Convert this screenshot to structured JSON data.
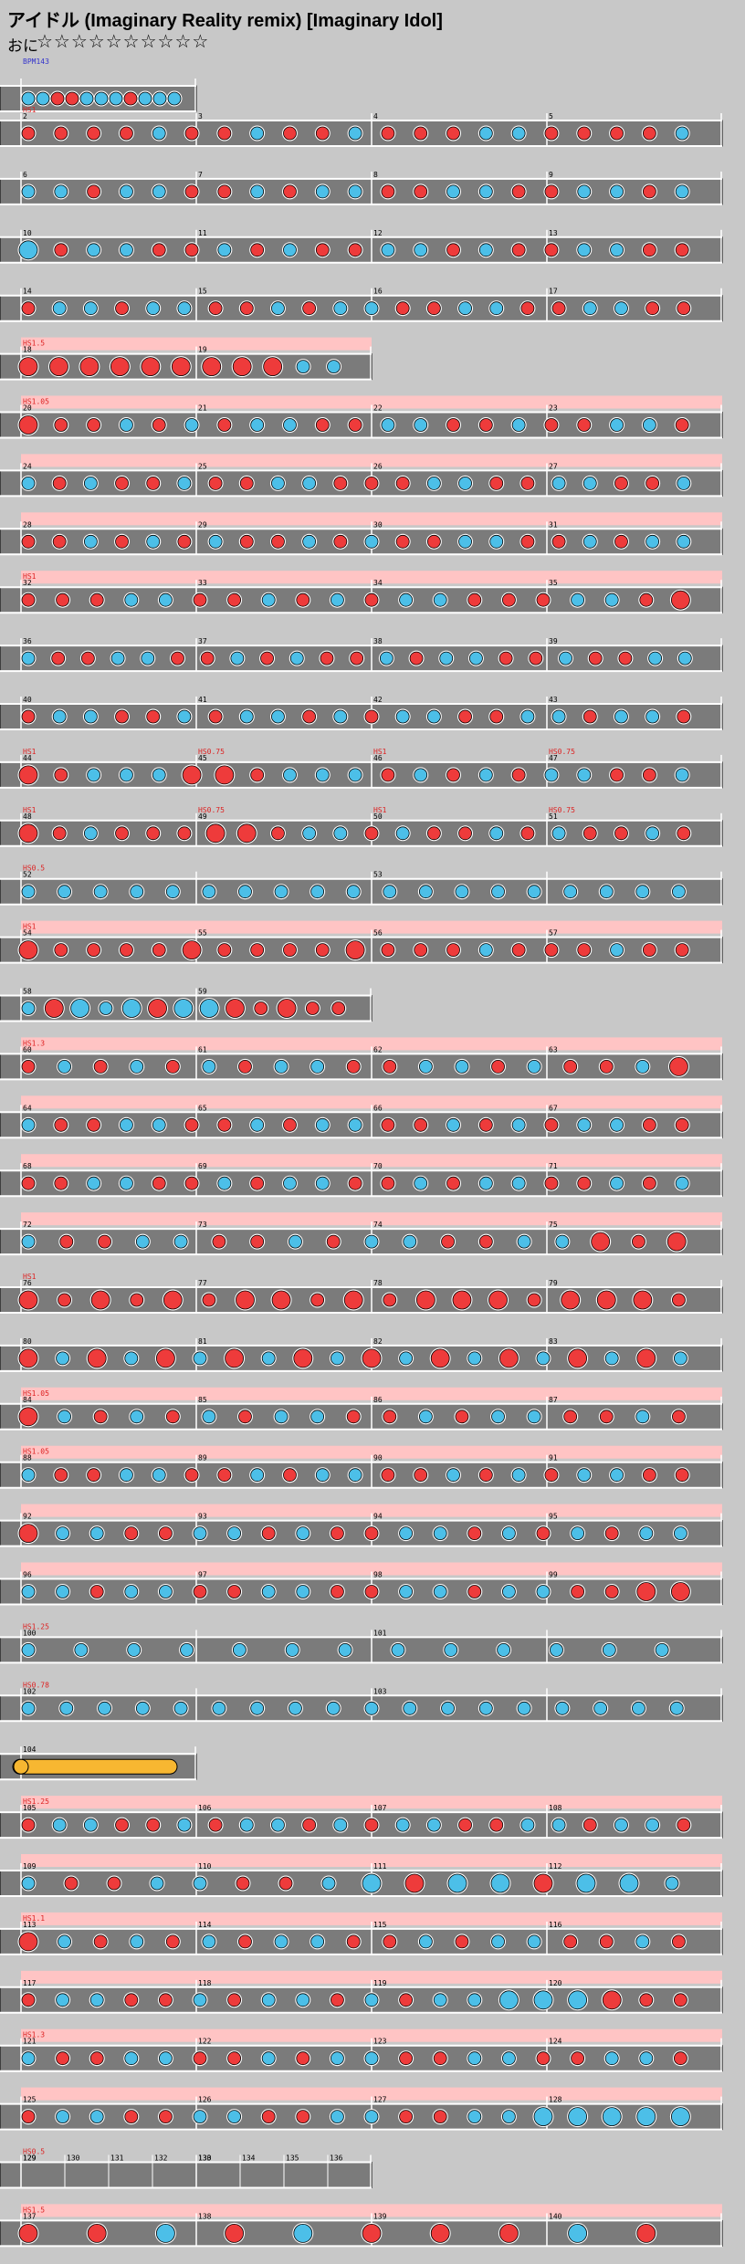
{
  "song": {
    "title": "アイドル (Imaginary Reality remix) [Imaginary Idol]",
    "difficulty_label": "おに",
    "stars": "☆☆☆☆☆☆☆☆☆☆"
  },
  "colors": {
    "background": "#c8c8c8",
    "lane": "#7b7b7b",
    "lane_border": "#ffffff",
    "don": "#ee3b3b",
    "katsu": "#4cbfe8",
    "scroll_band": "#ffc4c4",
    "scroll_text": "#dd2222",
    "roll": "#f7b731",
    "bpm_text": "#3333cc"
  },
  "bpm_label": "BPM143",
  "rows": [
    {
      "segments": 1,
      "bars": [
        "",
        ""
      ],
      "pattern": "kkrrkkkrkkk",
      "scroll": []
    },
    {
      "segments": 4,
      "bars": [
        "2",
        "3",
        "4",
        "5"
      ],
      "pattern": "drrdkrdkdrkdrrkkdrdrk",
      "scroll": [
        {
          "seg": 0,
          "text": "HS1",
          "full": false
        }
      ]
    },
    {
      "segments": 4,
      "bars": [
        "6",
        "7",
        "8",
        "9"
      ],
      "pattern": "kkrkkdrkrkkdrkkrdkkrk",
      "scroll": []
    },
    {
      "segments": 4,
      "bars": [
        "10",
        "11",
        "12",
        "13"
      ],
      "pattern": "Krkkdrkrkrdkkrkdrkkrd",
      "scroll": []
    },
    {
      "segments": 4,
      "bars": [
        "14",
        "15",
        "16",
        "17"
      ],
      "pattern": "dkkrkkdrkrkkddkkrrkkrd",
      "scroll": []
    },
    {
      "segments": 2,
      "bars": [
        "18",
        "19"
      ],
      "pattern": "DDDDDDDDDkk",
      "scroll": [
        {
          "seg": 0,
          "text": "HS1.5",
          "full": true
        }
      ]
    },
    {
      "segments": 4,
      "bars": [
        "20",
        "21",
        "22",
        "23"
      ],
      "pattern": "Drrkdkrkkrdkkdrkrrkkr",
      "scroll": [
        {
          "seg": 0,
          "text": "HS1.05",
          "full": true
        }
      ]
    },
    {
      "segments": 4,
      "bars": [
        "24",
        "25",
        "26",
        "27"
      ],
      "pattern": "krkrdkdrkkrdrkkrdkkdrk",
      "scroll": [
        {
          "seg": 0,
          "text": "",
          "full": true
        }
      ]
    },
    {
      "segments": 4,
      "bars": [
        "28",
        "29",
        "30",
        "31"
      ],
      "pattern": "rdkrkrkdrkrkdrkkrdkrkk",
      "scroll": [
        {
          "seg": 0,
          "text": "",
          "full": true
        }
      ]
    },
    {
      "segments": 4,
      "bars": [
        "32",
        "33",
        "34",
        "35"
      ],
      "pattern": "drrkkdrkdkrkkrrdkkdD",
      "scroll": [
        {
          "seg": 0,
          "text": "HS1",
          "full": true
        }
      ]
    },
    {
      "segments": 4,
      "bars": [
        "36",
        "37",
        "38",
        "39"
      ],
      "pattern": "kdrkkrdkrkdrkrkkdrkdrkk",
      "scroll": []
    },
    {
      "segments": 4,
      "bars": [
        "40",
        "41",
        "42",
        "43"
      ],
      "pattern": "rkkdrkrkkdkrkkrdkkrkkr",
      "scroll": []
    },
    {
      "segments": 4,
      "bars": [
        "44",
        "45",
        "46",
        "47"
      ],
      "pattern": "DrkkkDDrkkkdkrkrkkdrk",
      "scroll": [
        {
          "seg": 0,
          "text": "HS1",
          "full": false
        },
        {
          "seg": 1,
          "text": "HS0.75",
          "full": false
        },
        {
          "seg": 2,
          "text": "HS1",
          "full": false
        },
        {
          "seg": 3,
          "text": "HS0.75",
          "full": false
        }
      ]
    },
    {
      "segments": 4,
      "bars": [
        "48",
        "49",
        "50",
        "51"
      ],
      "pattern": "DrkrrrDDrkkrkdrkrkdrkr",
      "scroll": [
        {
          "seg": 0,
          "text": "HS1",
          "full": false
        },
        {
          "seg": 1,
          "text": "HS0.75",
          "full": false
        },
        {
          "seg": 2,
          "text": "HS1",
          "full": false
        },
        {
          "seg": 3,
          "text": "HS0.75",
          "full": false
        }
      ]
    },
    {
      "segments": 4,
      "bars": [
        "52",
        "",
        "53",
        ""
      ],
      "pattern": "kkkkkkkkkkkkkkkkkkk",
      "scroll": [
        {
          "seg": 0,
          "text": "HS0.5",
          "full": false
        }
      ]
    },
    {
      "segments": 4,
      "bars": [
        "54",
        "55",
        "56",
        "57"
      ],
      "pattern": "DrrdrDrrdrDrrdkrrdkrr",
      "scroll": [
        {
          "seg": 0,
          "text": "HS1",
          "full": true
        }
      ]
    },
    {
      "segments": 2,
      "bars": [
        "58",
        "59"
      ],
      "pattern": "kDKkKDKKDrDrr",
      "scroll": []
    },
    {
      "segments": 4,
      "bars": [
        "60",
        "61",
        "62",
        "63"
      ],
      "pattern": "dkrkdkrkkdrkkrkdrkD",
      "scroll": [
        {
          "seg": 0,
          "text": "HS1.3",
          "full": true
        }
      ]
    },
    {
      "segments": 4,
      "bars": [
        "64",
        "65",
        "66",
        "67"
      ],
      "pattern": "krdkkrdkrkkdrkrkdkkrd",
      "scroll": [
        {
          "seg": 0,
          "text": "",
          "full": true
        }
      ]
    },
    {
      "segments": 4,
      "bars": [
        "68",
        "69",
        "70",
        "71"
      ],
      "pattern": "drkkrdkrkkdrkrkkdrkrk",
      "scroll": [
        {
          "seg": 0,
          "text": "",
          "full": true
        }
      ]
    },
    {
      "segments": 4,
      "bars": [
        "72",
        "73",
        "74",
        "75"
      ],
      "pattern": "kdrkkrdkrkkdrkkDrD",
      "scroll": [
        {
          "seg": 0,
          "text": "",
          "full": true
        }
      ]
    },
    {
      "segments": 4,
      "bars": [
        "76",
        "77",
        "78",
        "79"
      ],
      "pattern": "DrDrDrDDrDrDDDrDDDr",
      "scroll": [
        {
          "seg": 0,
          "text": "HS1",
          "full": false
        }
      ]
    },
    {
      "segments": 4,
      "bars": [
        "80",
        "81",
        "82",
        "83"
      ],
      "pattern": "DkDkDkDkDkDkDkDkDkDk",
      "scroll": []
    },
    {
      "segments": 4,
      "bars": [
        "84",
        "85",
        "86",
        "87"
      ],
      "pattern": "Dkrkdkrkkdrkrkkdrkd",
      "scroll": [
        {
          "seg": 0,
          "text": "HS1.05",
          "full": true
        }
      ]
    },
    {
      "segments": 4,
      "bars": [
        "88",
        "89",
        "90",
        "91"
      ],
      "pattern": "krdkkrdkrkkdrkrkdkkrd",
      "scroll": [
        {
          "seg": 0,
          "text": "HS1.05",
          "full": true
        }
      ]
    },
    {
      "segments": 4,
      "bars": [
        "92",
        "93",
        "94",
        "95"
      ],
      "pattern": "Dkkrdkkrkrdkkrkdkrkk",
      "scroll": [
        {
          "seg": 0,
          "text": "",
          "full": true
        }
      ]
    },
    {
      "segments": 4,
      "bars": [
        "96",
        "97",
        "98",
        "99"
      ],
      "pattern": "kkrkkdrkkrdkkrkkdrDD",
      "scroll": [
        {
          "seg": 0,
          "text": "",
          "full": true
        }
      ]
    },
    {
      "segments": 4,
      "bars": [
        "100",
        "",
        "101",
        ""
      ],
      "pattern": "kkkkkkkkkkkkk",
      "scroll": [
        {
          "seg": 0,
          "text": "HS1.25",
          "full": false
        }
      ]
    },
    {
      "segments": 4,
      "bars": [
        "102",
        "",
        "103",
        ""
      ],
      "pattern": "kkkkkkkkkkkkkkkkkk",
      "scroll": [
        {
          "seg": 0,
          "text": "HS0.78",
          "full": false
        }
      ]
    },
    {
      "segments": 1,
      "bars": [
        "104"
      ],
      "pattern": "",
      "roll": true,
      "scroll": []
    },
    {
      "segments": 4,
      "bars": [
        "105",
        "106",
        "107",
        "108"
      ],
      "pattern": "rkkdrkrkkdkrkkrdkkrkkd",
      "scroll": [
        {
          "seg": 0,
          "text": "HS1.25",
          "full": true
        }
      ]
    },
    {
      "segments": 4,
      "bars": [
        "109",
        "110",
        "111",
        "112"
      ],
      "pattern": "kdrkkrdkKDKKDKKk",
      "scroll": [
        {
          "seg": 0,
          "text": "",
          "full": true
        }
      ]
    },
    {
      "segments": 4,
      "bars": [
        "113",
        "114",
        "115",
        "116"
      ],
      "pattern": "Dkrkdkrkkdrkrkkdrkd",
      "scroll": [
        {
          "seg": 0,
          "text": "HS1.1",
          "full": true
        }
      ]
    },
    {
      "segments": 4,
      "bars": [
        "117",
        "118",
        "119",
        "120"
      ],
      "pattern": "rkkdrkrkkdkrkkKKKDrr",
      "scroll": [
        {
          "seg": 0,
          "text": "",
          "full": true
        }
      ]
    },
    {
      "segments": 4,
      "bars": [
        "121",
        "122",
        "123",
        "124"
      ],
      "pattern": "kdrkkrdkrkkdrkkrdkkr",
      "scroll": [
        {
          "seg": 0,
          "text": "HS1.3",
          "full": true
        }
      ]
    },
    {
      "segments": 4,
      "bars": [
        "125",
        "126",
        "127",
        "128"
      ],
      "pattern": "rkkrrkkdrkkrrkkKKKKK",
      "scroll": [
        {
          "seg": 0,
          "text": "",
          "full": true
        }
      ]
    },
    {
      "segments": 2,
      "bars": [
        "129",
        "130",
        "131",
        "132",
        "133",
        "134",
        "135",
        "136"
      ],
      "pattern": "",
      "empty": true,
      "scroll": [
        {
          "seg": 0,
          "text": "HS0.5",
          "full": false
        }
      ]
    },
    {
      "segments": 4,
      "bars": [
        "137",
        "138",
        "139",
        "140"
      ],
      "pattern": "DDKDKDDDKD",
      "scroll": [
        {
          "seg": 0,
          "text": "HS1.5",
          "full": true
        }
      ]
    }
  ]
}
